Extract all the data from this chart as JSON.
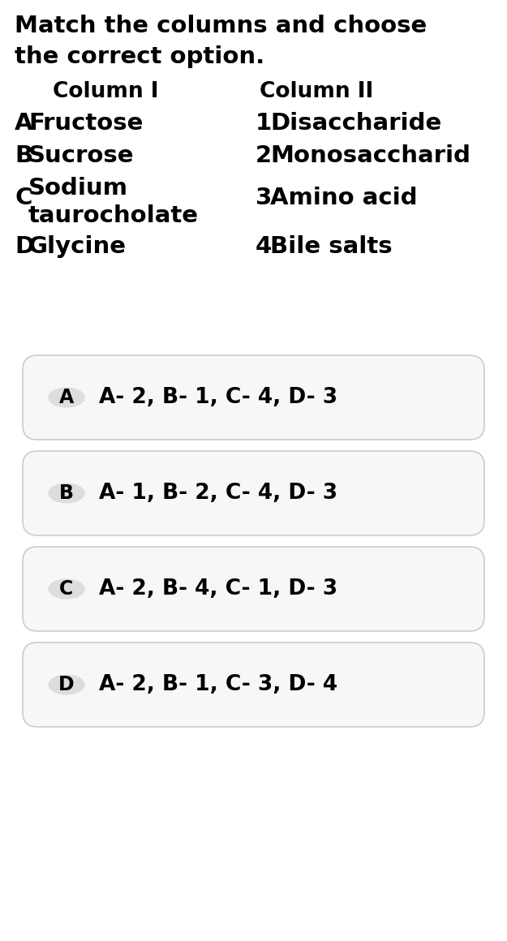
{
  "title_line1": "Match the columns and choose",
  "title_line2": "the correct option.",
  "col1_header": "Column I",
  "col2_header": "Column II",
  "col1_items": [
    {
      "label": "A",
      "text": "Fructose"
    },
    {
      "label": "B",
      "text": "Sucrose"
    },
    {
      "label": "C",
      "text_line1": "Sodium",
      "text_line2": "taurocholate"
    },
    {
      "label": "D",
      "text": "Glycine"
    }
  ],
  "col2_items": [
    {
      "label": "1",
      "text": "Disaccharide"
    },
    {
      "label": "2",
      "text": "Monosaccharid"
    },
    {
      "label": "3",
      "text": "Amino acid"
    },
    {
      "label": "4",
      "text": "Bile salts"
    }
  ],
  "options": [
    {
      "letter": "A",
      "text": "A- 2, B- 1, C- 4, D- 3"
    },
    {
      "letter": "B",
      "text": "A- 1, B- 2, C- 4, D- 3"
    },
    {
      "letter": "C",
      "text": "A- 2, B- 4, C- 1, D- 3"
    },
    {
      "letter": "D",
      "text": "A- 2, B- 1, C- 3, D- 4"
    }
  ],
  "bg_color": "#ffffff",
  "text_color": "#000000",
  "option_bg": "#f7f7f7",
  "option_border": "#cccccc",
  "circle_bg": "#dddddd",
  "title_fontsize": 21,
  "header_fontsize": 19,
  "item_fontsize": 21,
  "option_fontsize": 19,
  "option_label_fontsize": 17
}
